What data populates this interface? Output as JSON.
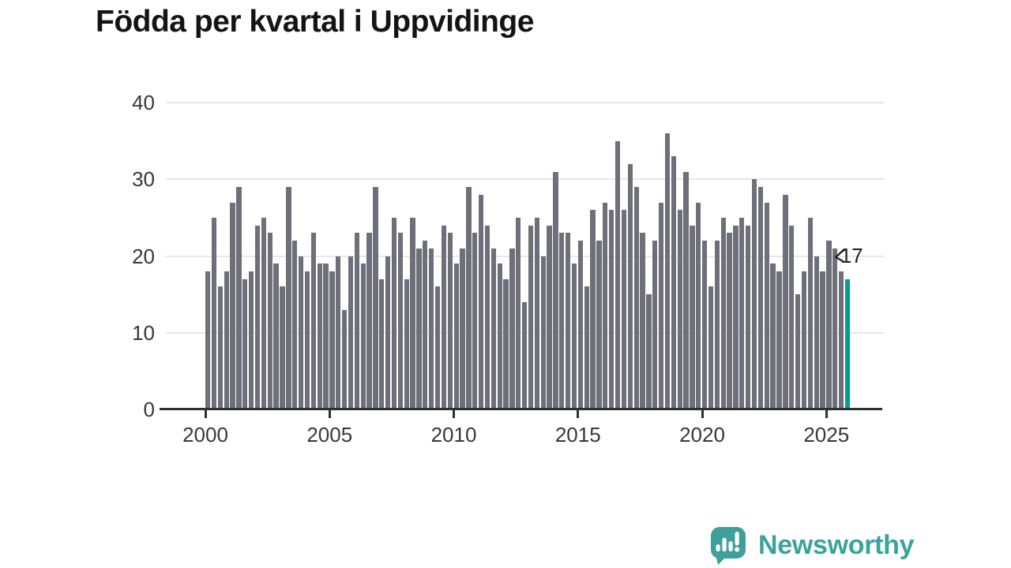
{
  "title": "Födda per kvartal i Uppvidinge",
  "branding": {
    "name": "Newsworthy"
  },
  "annotation": {
    "last_value_label": "17"
  },
  "colors": {
    "bar": "#6e6f78",
    "highlight": "#089a93",
    "axis": "#2e2f33",
    "grid": "#e8e8e8",
    "axis_text": "#38383b",
    "title_text": "#141414",
    "brand": "#3aa39c",
    "annotation_text": "#1f1f1f"
  },
  "chart_data": {
    "type": "bar",
    "title": "Födda per kvartal i Uppvidinge",
    "x_start": "2000-Q1",
    "x_end": "2025-Q4",
    "x_tick_labels": [
      "2000",
      "2005",
      "2010",
      "2015",
      "2020",
      "2025"
    ],
    "y_ticks": [
      0,
      10,
      20,
      30,
      40
    ],
    "ylim": [
      0,
      40
    ],
    "grid": "horizontal",
    "legend": "none",
    "highlight_last_bar": true,
    "last_value_label": "17",
    "values": [
      18,
      25,
      16,
      18,
      27,
      29,
      17,
      18,
      24,
      25,
      23,
      19,
      16,
      29,
      22,
      20,
      18,
      23,
      19,
      19,
      18,
      20,
      13,
      20,
      23,
      19,
      23,
      29,
      17,
      20,
      25,
      23,
      17,
      25,
      21,
      22,
      21,
      16,
      24,
      23,
      19,
      21,
      29,
      23,
      28,
      24,
      21,
      19,
      17,
      21,
      25,
      14,
      24,
      25,
      20,
      24,
      31,
      23,
      23,
      19,
      22,
      16,
      26,
      22,
      27,
      26,
      35,
      26,
      32,
      29,
      23,
      15,
      22,
      27,
      36,
      33,
      26,
      31,
      24,
      27,
      22,
      16,
      22,
      25,
      23,
      24,
      25,
      24,
      30,
      29,
      27,
      19,
      18,
      28,
      24,
      15,
      18,
      25,
      20,
      18,
      22,
      21,
      18,
      17
    ]
  }
}
